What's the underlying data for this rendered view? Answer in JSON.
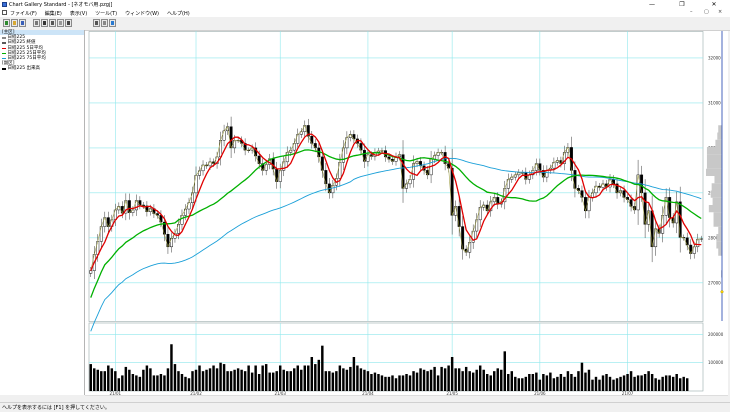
{
  "window": {
    "title": "Chart Gallery Standard - [ネオモバ用.pzgj]",
    "minimize": "—",
    "restore": "❐",
    "close": "✕"
  },
  "menu": {
    "items": [
      "ファイル(F)",
      "編集(E)",
      "表示(V)",
      "ツール(T)",
      "ウィンドウ(W)",
      "ヘルプ(H)"
    ],
    "mdi_minimize": "–",
    "mdi_restore": "▢",
    "mdi_close": "×"
  },
  "toolbar": {
    "buttons": [
      {
        "icon": "new-chart-icon"
      },
      {
        "icon": "open-icon"
      },
      {
        "icon": "save-icon"
      },
      {
        "icon": "properties-icon"
      },
      {
        "icon": "add-icon"
      },
      {
        "icon": "crosshair-icon"
      },
      {
        "icon": "grid-icon"
      },
      {
        "icon": "delete-icon"
      },
      {
        "icon": "print-icon"
      },
      {
        "icon": "copy-icon"
      },
      {
        "icon": "zoom-icon"
      }
    ]
  },
  "left_panel": {
    "sections": [
      {
        "label": "[主区]",
        "selected": true,
        "items": [
          {
            "label": "日経225",
            "color": "#888888"
          },
          {
            "label": "日経225 終値",
            "color": "#5a5a5a"
          },
          {
            "label": "日経225 5日平均",
            "color": "#e00000"
          },
          {
            "label": "日経225 25日平均",
            "color": "#00b000"
          },
          {
            "label": "日経225 75日平均",
            "color": "#1a9fd8"
          }
        ]
      },
      {
        "label": "[副区]",
        "selected": false,
        "items": [
          {
            "label": "日経225 出来高",
            "color": "#000000"
          }
        ]
      }
    ]
  },
  "status": {
    "text": "ヘルプを表示するには [F1] を押してください。"
  },
  "chart_data": {
    "type": "candlestick",
    "instrument": "日経225",
    "y_axis_ticks": [
      27000,
      28000,
      29000,
      30000,
      31000,
      32000
    ],
    "y_axis_tick_labels": [
      "27000",
      "28000",
      "29000",
      "30000",
      "31000",
      "32000"
    ],
    "ylim": [
      26150,
      32600
    ],
    "x_tick_labels": [
      "21/01",
      "21/02",
      "21/03",
      "21/04",
      "21/05",
      "21/06",
      "21/07"
    ],
    "x_tick_index": [
      7,
      30,
      54,
      79,
      103,
      128,
      153
    ],
    "volume_axis_tick_labels": [
      "200000",
      "100000"
    ],
    "volume_axis_ticks": [
      200000,
      100000
    ],
    "volume_max": 240000,
    "ohlc_mode": "candles",
    "series": [
      {
        "name": "日経225 5日平均",
        "color": "#e00000"
      },
      {
        "name": "日経225 25日平均",
        "color": "#00b000"
      },
      {
        "name": "日経225 75日平均",
        "color": "#1a9fd8"
      }
    ],
    "closes": [
      27270,
      27630,
      27920,
      28250,
      28450,
      28250,
      28400,
      28620,
      28700,
      28550,
      28830,
      28560,
      28620,
      28830,
      28730,
      28710,
      28580,
      28650,
      28540,
      28500,
      28350,
      28080,
      27800,
      27990,
      28100,
      28300,
      28500,
      28640,
      28780,
      29000,
      29390,
      29490,
      29620,
      29600,
      29690,
      29650,
      29800,
      30170,
      30380,
      30470,
      30000,
      30170,
      30170,
      30100,
      29950,
      29950,
      30000,
      29820,
      29650,
      29500,
      29630,
      29760,
      29530,
      29250,
      29500,
      29690,
      29900,
      29950,
      30100,
      30300,
      30360,
      30500,
      30260,
      30100,
      30000,
      29800,
      29500,
      29200,
      29000,
      29170,
      29320,
      29680,
      30000,
      30230,
      30300,
      30200,
      30100,
      29950,
      29700,
      29850,
      29810,
      29900,
      29930,
      29940,
      29800,
      29750,
      29700,
      29800,
      29850,
      29100,
      29200,
      29300,
      29650,
      29700,
      29600,
      29500,
      29400,
      29750,
      29830,
      29900,
      29900,
      29650,
      29550,
      28500,
      28700,
      28250,
      27750,
      27680,
      27900,
      28150,
      28400,
      28680,
      28730,
      28600,
      28800,
      28900,
      28750,
      28800,
      29100,
      29300,
      29350,
      29400,
      29450,
      29450,
      29300,
      29400,
      29500,
      29650,
      29500,
      29350,
      29500,
      29550,
      29680,
      29720,
      29650,
      29900,
      30010,
      29500,
      29100,
      29050,
      28900,
      28600,
      28900,
      29000,
      29150,
      29120,
      29200,
      29130,
      29300,
      29200,
      29000,
      29050,
      28900,
      28850,
      28700,
      28620,
      29400,
      29000,
      28300,
      28600,
      27800,
      28200,
      28100,
      28500,
      28900,
      28450,
      28330,
      28800,
      28010,
      28000,
      27840,
      27650,
      27800,
      27970,
      27980
    ],
    "volumes": [
      95000,
      80000,
      75000,
      70000,
      70000,
      90000,
      80000,
      70000,
      45000,
      55000,
      85000,
      75000,
      60000,
      55000,
      50000,
      75000,
      90000,
      80000,
      55000,
      55000,
      60000,
      55000,
      80000,
      165000,
      95000,
      70000,
      60000,
      50000,
      45000,
      70000,
      75000,
      90000,
      70000,
      75000,
      80000,
      90000,
      80000,
      100000,
      95000,
      70000,
      70000,
      75000,
      80000,
      75000,
      70000,
      90000,
      65000,
      90000,
      60000,
      90000,
      95000,
      65000,
      65000,
      70000,
      90000,
      75000,
      70000,
      70000,
      80000,
      90000,
      75000,
      90000,
      90000,
      120000,
      95000,
      110000,
      160000,
      70000,
      70000,
      65000,
      70000,
      90000,
      80000,
      75000,
      85000,
      120000,
      90000,
      80000,
      75000,
      70000,
      60000,
      65000,
      60000,
      55000,
      50000,
      50000,
      55000,
      45000,
      55000,
      55000,
      60000,
      55000,
      70000,
      65000,
      80000,
      75000,
      70000,
      75000,
      85000,
      55000,
      85000,
      80000,
      90000,
      120000,
      80000,
      80000,
      70000,
      85000,
      70000,
      65000,
      75000,
      90000,
      75000,
      60000,
      55000,
      70000,
      80000,
      75000,
      140000,
      60000,
      70000,
      50000,
      45000,
      45000,
      50000,
      60000,
      60000,
      65000,
      40000,
      60000,
      55000,
      65000,
      45000,
      50000,
      60000,
      50000,
      70000,
      60000,
      50000,
      70000,
      100000,
      65000,
      75000,
      40000,
      50000,
      40000,
      55000,
      60000,
      50000,
      40000,
      45000,
      50000,
      55000,
      60000,
      70000,
      50000,
      55000,
      55000,
      60000,
      70000,
      60000,
      45000,
      40000,
      50000,
      55000,
      55000,
      50000,
      60000,
      45000,
      50000,
      45000
    ]
  }
}
